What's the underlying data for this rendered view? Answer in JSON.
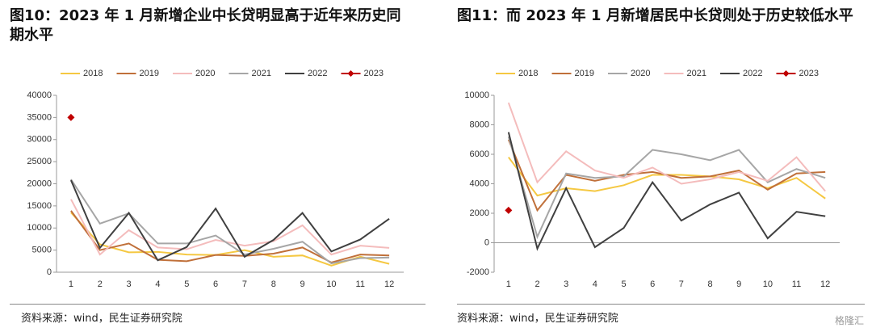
{
  "chart_data": [
    {
      "type": "line",
      "title": "图10：2023 年 1 月新增企业中长贷明显高于近年来历史同期水平",
      "source": "资料来源：wind，民生证券研究院",
      "categories": [
        "1",
        "2",
        "3",
        "4",
        "5",
        "6",
        "7",
        "8",
        "9",
        "10",
        "11",
        "12"
      ],
      "ylim": [
        0,
        40000
      ],
      "yticks": [
        0,
        5000,
        10000,
        15000,
        20000,
        25000,
        30000,
        35000,
        40000
      ],
      "series": [
        {
          "name": "2018",
          "color": "#f5c842",
          "values": [
            13500,
            6300,
            4500,
            4600,
            4000,
            3900,
            5000,
            3500,
            3800,
            1500,
            3500,
            1900
          ]
        },
        {
          "name": "2019",
          "color": "#c0703a",
          "values": [
            13900,
            5000,
            6500,
            2800,
            2500,
            3900,
            3700,
            4200,
            5600,
            2200,
            4000,
            3800
          ]
        },
        {
          "name": "2020",
          "color": "#f4bcbc",
          "values": [
            16500,
            4000,
            9500,
            5600,
            5200,
            7300,
            6000,
            7000,
            10600,
            4000,
            6000,
            5500
          ]
        },
        {
          "name": "2021",
          "color": "#a6a6a6",
          "values": [
            21000,
            11000,
            13300,
            6500,
            6500,
            8300,
            4000,
            5300,
            6900,
            2000,
            3200,
            3300
          ]
        },
        {
          "name": "2022",
          "color": "#404040",
          "values": [
            20800,
            5500,
            13400,
            2700,
            5700,
            14400,
            3500,
            7300,
            13400,
            4700,
            7400,
            12100
          ]
        },
        {
          "name": "2023",
          "color": "#c00000",
          "marker": "diamond",
          "values": [
            35000,
            null,
            null,
            null,
            null,
            null,
            null,
            null,
            null,
            null,
            null,
            null
          ]
        }
      ]
    },
    {
      "type": "line",
      "title": "图11：而 2023 年 1 月新增居民中长贷则处于历史较低水平",
      "source": "资料来源：wind，民生证券研究院",
      "categories": [
        "1",
        "2",
        "3",
        "4",
        "5",
        "6",
        "7",
        "8",
        "9",
        "10",
        "11",
        "12"
      ],
      "ylim": [
        -2000,
        10000
      ],
      "yticks": [
        -2000,
        0,
        2000,
        4000,
        6000,
        8000,
        10000
      ],
      "series": [
        {
          "name": "2018",
          "color": "#f5c842",
          "values": [
            5800,
            3200,
            3700,
            3500,
            3900,
            4600,
            4600,
            4500,
            4300,
            3700,
            4400,
            3000
          ]
        },
        {
          "name": "2019",
          "color": "#c0703a",
          "values": [
            7000,
            2200,
            4600,
            4200,
            4600,
            4800,
            4400,
            4500,
            4900,
            3600,
            4700,
            4800
          ]
        },
        {
          "name": "2020",
          "color": "#a6a6a6",
          "values": [
            7200,
            400,
            4700,
            4400,
            4500,
            6300,
            6000,
            5600,
            6300,
            4100,
            5000,
            4400
          ]
        },
        {
          "name": "2021",
          "color": "#f4bcbc",
          "values": [
            9500,
            4100,
            6200,
            4900,
            4400,
            5100,
            4000,
            4300,
            4800,
            4200,
            5800,
            3500
          ]
        },
        {
          "name": "2022",
          "color": "#404040",
          "values": [
            7500,
            -400,
            3700,
            -300,
            1000,
            4100,
            1500,
            2600,
            3400,
            300,
            2100,
            1800
          ]
        },
        {
          "name": "2023",
          "color": "#c00000",
          "marker": "diamond",
          "values": [
            2200,
            null,
            null,
            null,
            null,
            null,
            null,
            null,
            null,
            null,
            null,
            null
          ]
        }
      ]
    }
  ],
  "watermark": "格隆汇"
}
